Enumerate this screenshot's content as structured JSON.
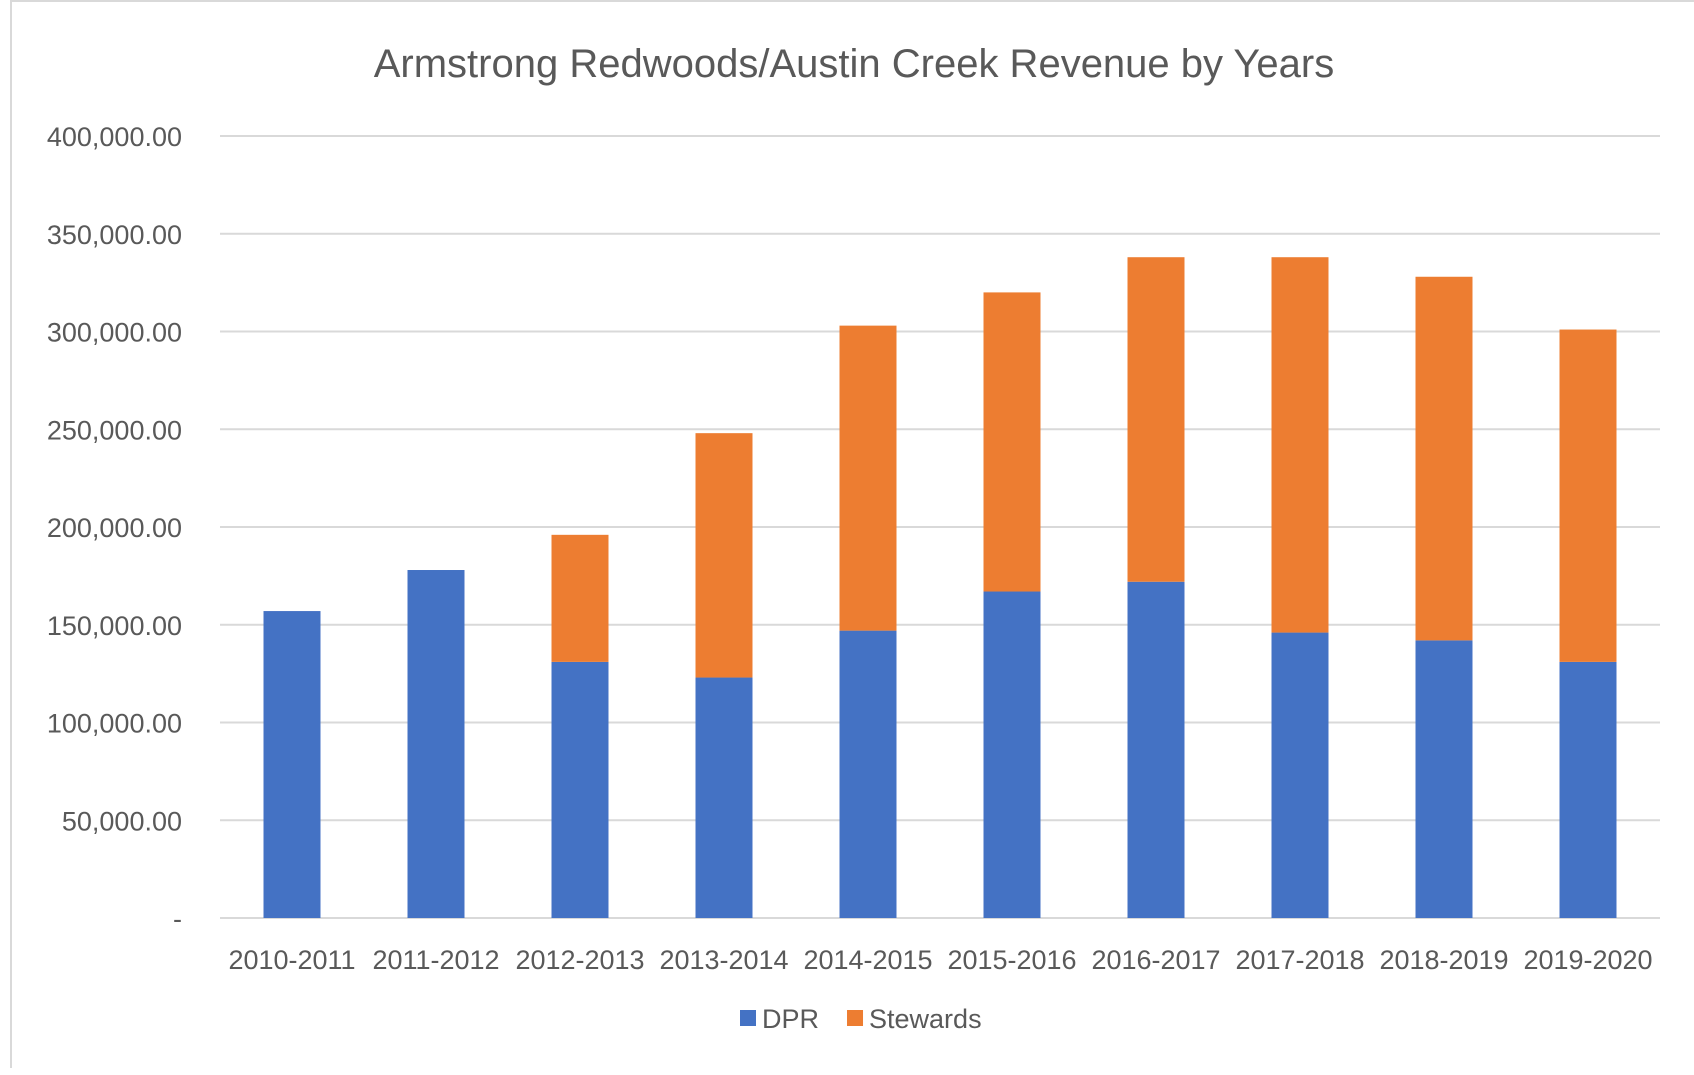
{
  "chart_data": {
    "type": "bar",
    "stacked": true,
    "title": "Armstrong Redwoods/Austin Creek Revenue by Years",
    "xlabel": "",
    "ylabel": "",
    "categories": [
      "2010-2011",
      "2011-2012",
      "2012-2013",
      "2013-2014",
      "2014-2015",
      "2015-2016",
      "2016-2017",
      "2017-2018",
      "2018-2019",
      "2019-2020"
    ],
    "series": [
      {
        "name": "DPR",
        "color": "#4472C4",
        "values": [
          157000,
          178000,
          131000,
          123000,
          147000,
          167000,
          172000,
          146000,
          142000,
          131000
        ]
      },
      {
        "name": "Stewards",
        "color": "#ED7D31",
        "values": [
          0,
          0,
          65000,
          125000,
          156000,
          153000,
          166000,
          192000,
          186000,
          170000
        ]
      }
    ],
    "ylim": [
      0,
      400000
    ],
    "yticks": [
      0,
      50000,
      100000,
      150000,
      200000,
      250000,
      300000,
      350000,
      400000
    ],
    "ytick_labels": [
      "-",
      "50,000.00",
      "100,000.00",
      "150,000.00",
      "200,000.00",
      "250,000.00",
      "300,000.00",
      "350,000.00",
      "400,000.00"
    ],
    "grid": true,
    "legend_position": "bottom",
    "gridline_color": "#d9d9d9",
    "text_color": "#595959"
  }
}
